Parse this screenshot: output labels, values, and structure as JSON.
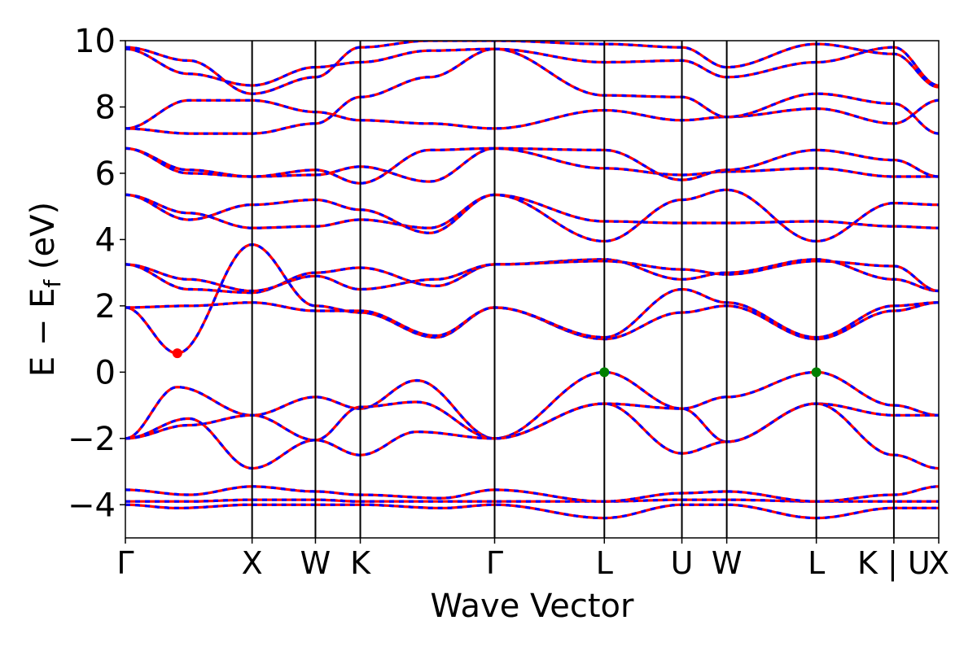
{
  "chart_data": {
    "type": "line",
    "title": "",
    "xlabel": "Wave Vector",
    "ylabel_main": "E − E",
    "ylabel_sub": "f",
    "ylabel_unit": " (eV)",
    "ylim": [
      -5,
      10
    ],
    "yticks": [
      -4,
      -2,
      0,
      2,
      4,
      6,
      8,
      10
    ],
    "grid": false,
    "legend": "none",
    "high_symmetry_points": [
      {
        "label": "Γ",
        "x": 0.0
      },
      {
        "label": "X",
        "x": 1.0
      },
      {
        "label": "W",
        "x": 1.5
      },
      {
        "label": "K",
        "x": 1.854
      },
      {
        "label": "Γ",
        "x": 2.914
      },
      {
        "label": "L",
        "x": 3.78
      },
      {
        "label": "U",
        "x": 4.392
      },
      {
        "label": "W",
        "x": 4.746
      },
      {
        "label": "L",
        "x": 5.453
      },
      {
        "label": "K | U",
        "x": 6.065
      },
      {
        "label": "X",
        "x": 6.419
      }
    ],
    "band_colors": {
      "solid": "#ff0000",
      "dashed": "#0000ff"
    },
    "extrema_markers": [
      {
        "type": "CBM",
        "x": 0.41,
        "y": 0.57,
        "color": "#ff0000"
      },
      {
        "type": "VBM",
        "x": 3.78,
        "y": 0.0,
        "color": "#008000"
      },
      {
        "type": "VBM",
        "x": 5.453,
        "y": 0.0,
        "color": "#008000"
      }
    ],
    "series": [
      {
        "x": [
          0,
          0.41,
          1.0,
          1.5,
          1.854,
          2.5,
          2.914,
          3.78,
          4.392,
          4.746,
          5.453,
          6.065,
          6.419
        ],
        "y": [
          -4.0,
          -4.1,
          -4.0,
          -4.0,
          -4.0,
          -4.1,
          -4.0,
          -4.4,
          -4.0,
          -4.0,
          -4.4,
          -4.1,
          -4.1
        ]
      },
      {
        "x": [
          0,
          0.5,
          1.0,
          1.5,
          1.854,
          2.5,
          2.914,
          3.78,
          4.392,
          4.746,
          5.453,
          6.065,
          6.419
        ],
        "y": [
          -3.9,
          -3.9,
          -3.85,
          -3.85,
          -3.9,
          -3.9,
          -3.9,
          -3.9,
          -3.85,
          -3.85,
          -3.9,
          -3.9,
          -3.9
        ]
      },
      {
        "x": [
          0,
          0.5,
          1.0,
          1.5,
          1.854,
          2.5,
          2.914,
          3.78,
          4.392,
          4.746,
          5.453,
          6.065,
          6.419
        ],
        "y": [
          -3.55,
          -3.7,
          -3.45,
          -3.6,
          -3.7,
          -3.8,
          -3.55,
          -3.9,
          -3.65,
          -3.6,
          -3.9,
          -3.7,
          -3.45
        ]
      },
      {
        "x": [
          0,
          0.41,
          1.0,
          1.5,
          1.854,
          2.3,
          2.914,
          3.78,
          4.392,
          4.746,
          5.453,
          6.065,
          6.419
        ],
        "y": [
          -2.0,
          -0.45,
          -1.3,
          -0.75,
          -1.1,
          -0.25,
          -2.0,
          0.0,
          -1.1,
          -0.75,
          0.0,
          -1.0,
          -1.3
        ]
      },
      {
        "x": [
          0,
          0.5,
          1.0,
          1.5,
          1.854,
          2.3,
          2.914,
          3.78,
          4.392,
          4.746,
          5.453,
          6.065,
          6.419
        ],
        "y": [
          -2.0,
          -1.6,
          -1.3,
          -2.05,
          -1.05,
          -0.9,
          -2.0,
          -0.95,
          -1.1,
          -2.1,
          -0.95,
          -1.3,
          -1.3
        ]
      },
      {
        "x": [
          0,
          0.5,
          1.0,
          1.5,
          1.854,
          2.3,
          2.914,
          3.78,
          4.392,
          4.746,
          5.453,
          6.065,
          6.419
        ],
        "y": [
          -2.0,
          -1.4,
          -2.9,
          -2.05,
          -2.5,
          -1.8,
          -2.0,
          -0.95,
          -2.45,
          -2.1,
          -0.95,
          -2.5,
          -2.9
        ]
      },
      {
        "x": [
          0,
          0.41,
          1.0,
          1.5,
          1.854,
          2.45,
          2.914,
          3.78,
          4.392,
          4.746,
          5.453,
          6.065,
          6.419
        ],
        "y": [
          1.95,
          0.57,
          3.85,
          2.0,
          1.8,
          1.05,
          1.95,
          1.0,
          1.8,
          2.0,
          1.0,
          1.85,
          2.1
        ]
      },
      {
        "x": [
          0,
          0.5,
          1.0,
          1.5,
          1.854,
          2.45,
          2.914,
          3.78,
          4.392,
          4.746,
          5.453,
          6.065,
          6.419
        ],
        "y": [
          1.95,
          2.0,
          2.1,
          1.85,
          1.85,
          1.1,
          1.95,
          1.05,
          2.5,
          2.1,
          1.05,
          2.0,
          2.1
        ]
      },
      {
        "x": [
          0,
          0.5,
          1.0,
          1.5,
          1.854,
          2.45,
          2.914,
          3.78,
          4.392,
          4.746,
          5.453,
          6.065,
          6.419
        ],
        "y": [
          3.25,
          2.5,
          2.4,
          3.0,
          3.15,
          2.6,
          3.25,
          3.4,
          2.8,
          3.0,
          3.4,
          2.8,
          2.45
        ]
      },
      {
        "x": [
          0,
          0.5,
          1.0,
          1.5,
          1.854,
          2.45,
          2.914,
          3.78,
          4.392,
          4.746,
          5.453,
          6.065,
          6.419
        ],
        "y": [
          3.25,
          2.8,
          2.45,
          2.9,
          2.5,
          2.8,
          3.25,
          3.35,
          3.1,
          2.95,
          3.35,
          3.2,
          2.45
        ]
      },
      {
        "x": [
          0,
          0.5,
          1.0,
          1.5,
          1.854,
          2.4,
          2.914,
          3.78,
          4.392,
          4.746,
          5.453,
          6.065,
          6.419
        ],
        "y": [
          5.35,
          4.8,
          4.35,
          4.4,
          4.6,
          4.35,
          5.35,
          4.55,
          4.5,
          4.5,
          4.55,
          4.4,
          4.35
        ]
      },
      {
        "x": [
          0,
          0.5,
          1.0,
          1.5,
          1.854,
          2.4,
          2.914,
          3.78,
          4.392,
          4.746,
          5.453,
          6.065,
          6.419
        ],
        "y": [
          5.35,
          4.6,
          5.05,
          5.2,
          4.9,
          4.2,
          5.35,
          3.95,
          5.2,
          5.5,
          3.95,
          5.1,
          5.05
        ]
      },
      {
        "x": [
          0,
          0.5,
          1.0,
          1.5,
          1.854,
          2.4,
          2.914,
          3.78,
          4.392,
          4.746,
          5.453,
          6.065,
          6.419
        ],
        "y": [
          6.75,
          6.1,
          5.9,
          5.95,
          6.2,
          5.75,
          6.75,
          6.15,
          5.95,
          6.05,
          6.15,
          5.9,
          5.9
        ]
      },
      {
        "x": [
          0,
          0.5,
          1.0,
          1.5,
          1.854,
          2.4,
          2.914,
          3.78,
          4.392,
          4.746,
          5.453,
          6.065,
          6.419
        ],
        "y": [
          6.75,
          6.0,
          5.9,
          6.1,
          5.7,
          6.7,
          6.75,
          6.7,
          5.8,
          6.1,
          6.7,
          6.4,
          5.9
        ]
      },
      {
        "x": [
          0,
          0.5,
          1.0,
          1.5,
          1.854,
          2.4,
          2.914,
          3.78,
          4.392,
          4.746,
          5.453,
          6.065,
          6.419
        ],
        "y": [
          7.35,
          8.2,
          8.2,
          7.85,
          7.6,
          7.5,
          7.35,
          7.9,
          7.6,
          7.7,
          7.95,
          7.5,
          8.2
        ]
      },
      {
        "x": [
          0,
          0.5,
          1.0,
          1.5,
          1.854,
          2.4,
          2.914,
          3.78,
          4.392,
          4.746,
          5.453,
          6.065,
          6.419
        ],
        "y": [
          7.35,
          7.2,
          7.2,
          7.5,
          8.3,
          8.9,
          9.75,
          8.35,
          8.3,
          7.7,
          8.4,
          8.1,
          7.2
        ]
      },
      {
        "x": [
          0,
          0.5,
          1.0,
          1.5,
          1.854,
          2.4,
          2.914,
          3.78,
          4.392,
          4.746,
          5.453,
          6.065,
          6.419
        ],
        "y": [
          9.75,
          9.0,
          8.65,
          9.2,
          9.35,
          9.7,
          9.75,
          9.35,
          9.4,
          8.9,
          9.35,
          9.8,
          8.65
        ]
      },
      {
        "x": [
          0,
          0.5,
          1.0,
          1.5,
          1.854,
          2.4,
          2.914,
          3.78,
          4.392,
          4.746,
          5.453,
          6.065,
          6.419
        ],
        "y": [
          9.8,
          9.4,
          8.4,
          8.9,
          9.8,
          10.0,
          10.0,
          9.9,
          9.8,
          9.2,
          9.9,
          9.6,
          8.6
        ]
      }
    ]
  }
}
